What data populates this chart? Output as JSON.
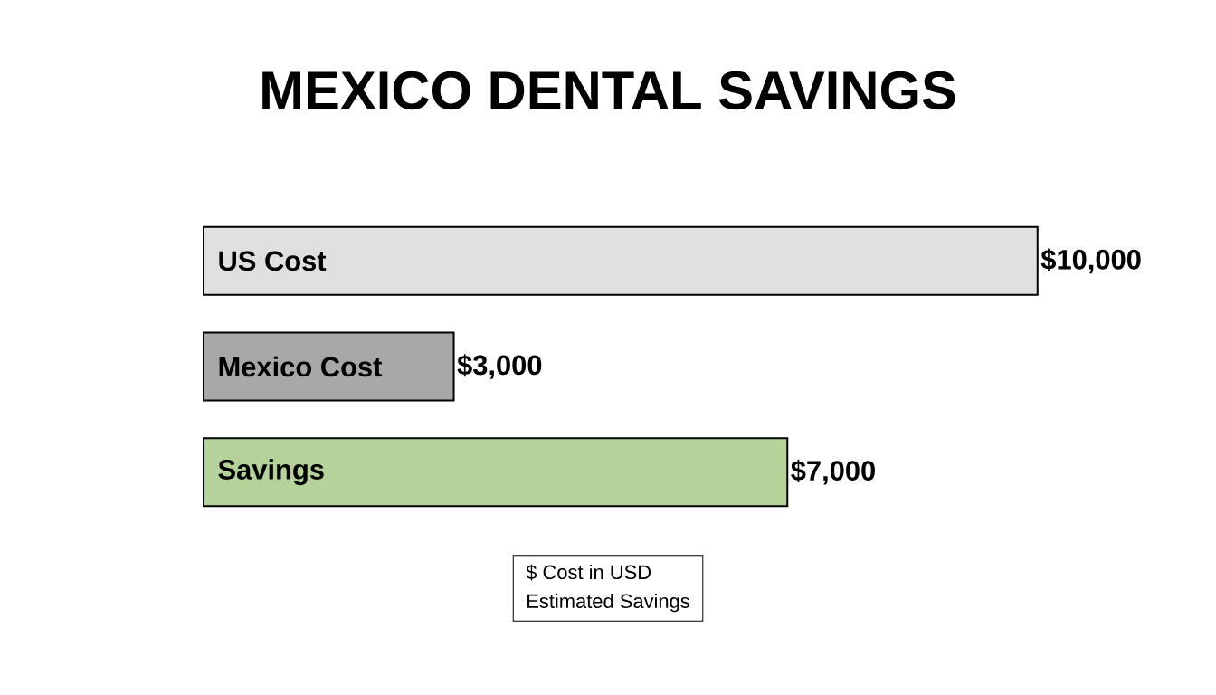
{
  "chart_data": {
    "type": "bar",
    "orientation": "horizontal",
    "title": "MEXICO DENTAL SAVINGS",
    "categories": [
      "US Cost",
      "Mexico Cost",
      "Savings"
    ],
    "values": [
      10000,
      3000,
      7000
    ],
    "value_labels": [
      "$10,000",
      "$3,000",
      "$7,000"
    ],
    "colors": [
      "#e0e0e0",
      "#a8a8a8",
      "#b5d29a"
    ],
    "annotations": [
      "$ Cost in USD",
      "Estimated Savings"
    ]
  }
}
